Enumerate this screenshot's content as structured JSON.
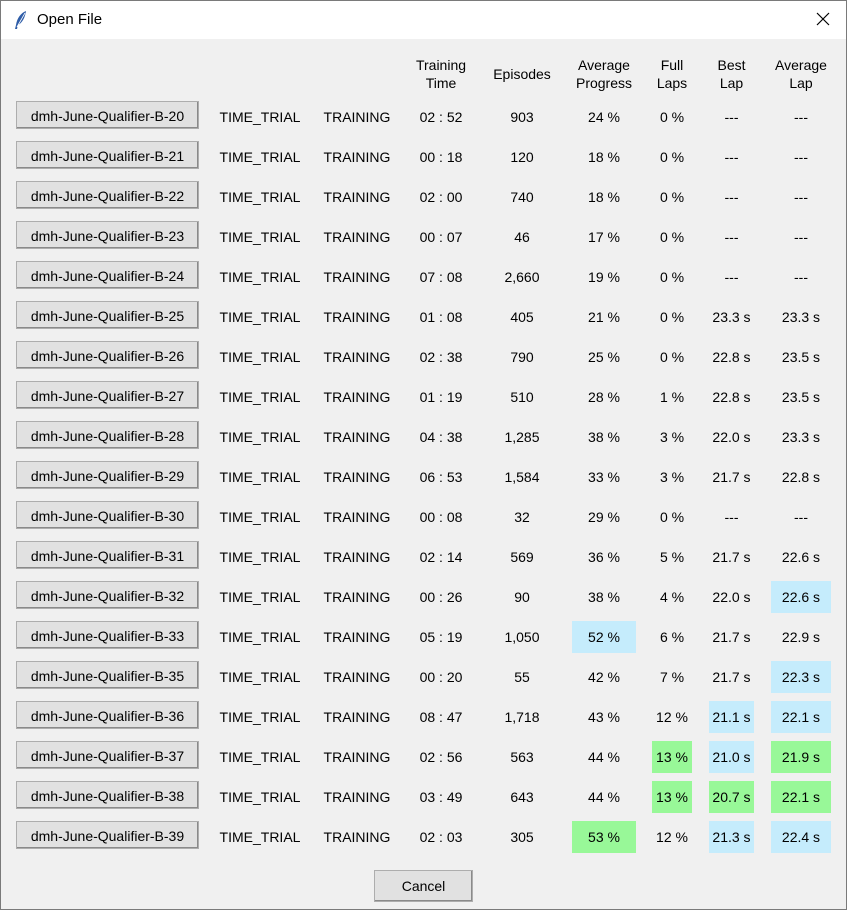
{
  "window": {
    "title": "Open File",
    "icon": "feather-icon"
  },
  "headers": {
    "training_time": "Training\nTime",
    "episodes": "Episodes",
    "average_progress": "Average\nProgress",
    "full_laps": "Full\nLaps",
    "best_lap": "Best\nLap",
    "average_lap": "Average\nLap"
  },
  "highlight_colors": {
    "blue": "#c5ecfc",
    "green": "#98f898"
  },
  "rows": [
    {
      "name": "dmh-June-Qualifier-B-20",
      "mode": "TIME_TRIAL",
      "phase": "TRAINING",
      "time": "02 : 52",
      "episodes": "903",
      "progress": "24 %",
      "laps": "0 %",
      "best": "---",
      "avg": "---"
    },
    {
      "name": "dmh-June-Qualifier-B-21",
      "mode": "TIME_TRIAL",
      "phase": "TRAINING",
      "time": "00 : 18",
      "episodes": "120",
      "progress": "18 %",
      "laps": "0 %",
      "best": "---",
      "avg": "---"
    },
    {
      "name": "dmh-June-Qualifier-B-22",
      "mode": "TIME_TRIAL",
      "phase": "TRAINING",
      "time": "02 : 00",
      "episodes": "740",
      "progress": "18 %",
      "laps": "0 %",
      "best": "---",
      "avg": "---"
    },
    {
      "name": "dmh-June-Qualifier-B-23",
      "mode": "TIME_TRIAL",
      "phase": "TRAINING",
      "time": "00 : 07",
      "episodes": "46",
      "progress": "17 %",
      "laps": "0 %",
      "best": "---",
      "avg": "---"
    },
    {
      "name": "dmh-June-Qualifier-B-24",
      "mode": "TIME_TRIAL",
      "phase": "TRAINING",
      "time": "07 : 08",
      "episodes": "2,660",
      "progress": "19 %",
      "laps": "0 %",
      "best": "---",
      "avg": "---"
    },
    {
      "name": "dmh-June-Qualifier-B-25",
      "mode": "TIME_TRIAL",
      "phase": "TRAINING",
      "time": "01 : 08",
      "episodes": "405",
      "progress": "21 %",
      "laps": "0 %",
      "best": "23.3 s",
      "avg": "23.3 s"
    },
    {
      "name": "dmh-June-Qualifier-B-26",
      "mode": "TIME_TRIAL",
      "phase": "TRAINING",
      "time": "02 : 38",
      "episodes": "790",
      "progress": "25 %",
      "laps": "0 %",
      "best": "22.8 s",
      "avg": "23.5 s"
    },
    {
      "name": "dmh-June-Qualifier-B-27",
      "mode": "TIME_TRIAL",
      "phase": "TRAINING",
      "time": "01 : 19",
      "episodes": "510",
      "progress": "28 %",
      "laps": "1 %",
      "best": "22.8 s",
      "avg": "23.5 s"
    },
    {
      "name": "dmh-June-Qualifier-B-28",
      "mode": "TIME_TRIAL",
      "phase": "TRAINING",
      "time": "04 : 38",
      "episodes": "1,285",
      "progress": "38 %",
      "laps": "3 %",
      "best": "22.0 s",
      "avg": "23.3 s"
    },
    {
      "name": "dmh-June-Qualifier-B-29",
      "mode": "TIME_TRIAL",
      "phase": "TRAINING",
      "time": "06 : 53",
      "episodes": "1,584",
      "progress": "33 %",
      "laps": "3 %",
      "best": "21.7 s",
      "avg": "22.8 s"
    },
    {
      "name": "dmh-June-Qualifier-B-30",
      "mode": "TIME_TRIAL",
      "phase": "TRAINING",
      "time": "00 : 08",
      "episodes": "32",
      "progress": "29 %",
      "laps": "0 %",
      "best": "---",
      "avg": "---"
    },
    {
      "name": "dmh-June-Qualifier-B-31",
      "mode": "TIME_TRIAL",
      "phase": "TRAINING",
      "time": "02 : 14",
      "episodes": "569",
      "progress": "36 %",
      "laps": "5 %",
      "best": "21.7 s",
      "avg": "22.6 s"
    },
    {
      "name": "dmh-June-Qualifier-B-32",
      "mode": "TIME_TRIAL",
      "phase": "TRAINING",
      "time": "00 : 26",
      "episodes": "90",
      "progress": "38 %",
      "laps": "4 %",
      "best": "22.0 s",
      "avg": "22.6 s",
      "hl": {
        "avg": "blue"
      }
    },
    {
      "name": "dmh-June-Qualifier-B-33",
      "mode": "TIME_TRIAL",
      "phase": "TRAINING",
      "time": "05 : 19",
      "episodes": "1,050",
      "progress": "52 %",
      "laps": "6 %",
      "best": "21.7 s",
      "avg": "22.9 s",
      "hl": {
        "progress": "blue"
      }
    },
    {
      "name": "dmh-June-Qualifier-B-35",
      "mode": "TIME_TRIAL",
      "phase": "TRAINING",
      "time": "00 : 20",
      "episodes": "55",
      "progress": "42 %",
      "laps": "7 %",
      "best": "21.7 s",
      "avg": "22.3 s",
      "hl": {
        "avg": "blue"
      }
    },
    {
      "name": "dmh-June-Qualifier-B-36",
      "mode": "TIME_TRIAL",
      "phase": "TRAINING",
      "time": "08 : 47",
      "episodes": "1,718",
      "progress": "43 %",
      "laps": "12 %",
      "best": "21.1 s",
      "avg": "22.1 s",
      "hl": {
        "best": "blue",
        "avg": "blue"
      }
    },
    {
      "name": "dmh-June-Qualifier-B-37",
      "mode": "TIME_TRIAL",
      "phase": "TRAINING",
      "time": "02 : 56",
      "episodes": "563",
      "progress": "44 %",
      "laps": "13 %",
      "best": "21.0 s",
      "avg": "21.9 s",
      "hl": {
        "laps": "green",
        "best": "blue",
        "avg": "green"
      }
    },
    {
      "name": "dmh-June-Qualifier-B-38",
      "mode": "TIME_TRIAL",
      "phase": "TRAINING",
      "time": "03 : 49",
      "episodes": "643",
      "progress": "44 %",
      "laps": "13 %",
      "best": "20.7 s",
      "avg": "22.1 s",
      "hl": {
        "laps": "green",
        "best": "green",
        "avg": "green"
      }
    },
    {
      "name": "dmh-June-Qualifier-B-39",
      "mode": "TIME_TRIAL",
      "phase": "TRAINING",
      "time": "02 : 03",
      "episodes": "305",
      "progress": "53 %",
      "laps": "12 %",
      "best": "21.3 s",
      "avg": "22.4 s",
      "hl": {
        "progress": "green",
        "best": "blue",
        "avg": "blue"
      }
    }
  ],
  "footer": {
    "cancel_label": "Cancel"
  }
}
